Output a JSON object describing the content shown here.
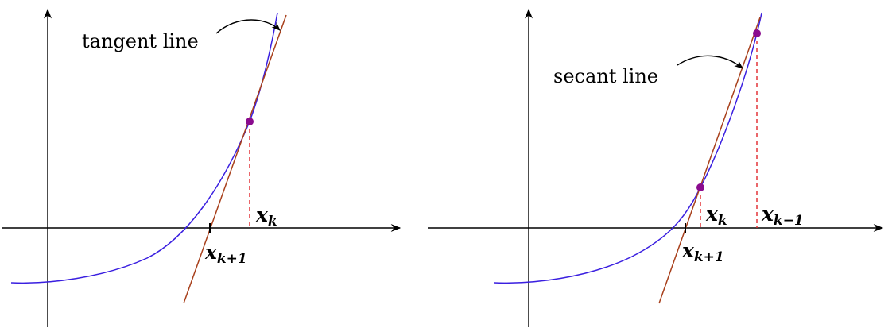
{
  "panels": [
    {
      "id": "newton",
      "line_label": "tangent line",
      "point_labels": [
        {
          "base": "x",
          "sub": "k"
        },
        {
          "base": "x",
          "sub": "k+1"
        }
      ]
    },
    {
      "id": "secant",
      "line_label": "secant line",
      "point_labels": [
        {
          "base": "x",
          "sub": "k"
        },
        {
          "base": "x",
          "sub": "k−1"
        },
        {
          "base": "x",
          "sub": "k+1"
        }
      ]
    }
  ],
  "colors": {
    "curve": "#3a1fe0",
    "line": "#a8401c",
    "point": "#8a0b8e",
    "guide": "#e0262a",
    "axis": "#000000"
  }
}
